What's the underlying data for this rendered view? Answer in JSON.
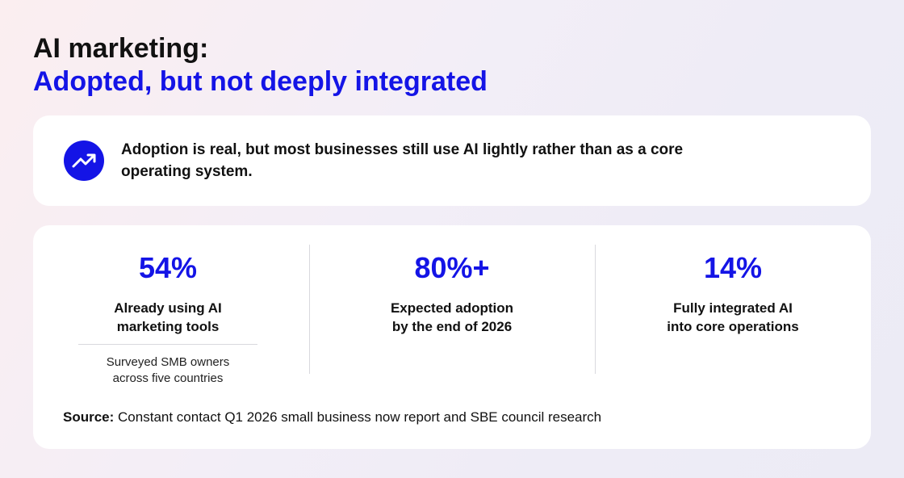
{
  "header": {
    "title": "AI marketing:",
    "subtitle": "Adopted, but not deeply integrated"
  },
  "callout": {
    "lines": [
      "Adoption is real, but most businesses still use AI lightly rather than as a core",
      "operating system."
    ]
  },
  "stats": [
    {
      "value": "54%",
      "label": [
        "Already using AI",
        "marketing tools"
      ],
      "note": [
        "Surveyed SMB owners",
        "across five countries"
      ]
    },
    {
      "value": "80%+",
      "label": [
        "Expected adoption",
        "by the end of 2026"
      ]
    },
    {
      "value": "14%",
      "label": [
        "Fully integrated AI",
        "into core operations"
      ]
    }
  ],
  "source": {
    "label": "Source:",
    "text": "Constant contact Q1 2026 small business now report and SBE council research"
  }
}
